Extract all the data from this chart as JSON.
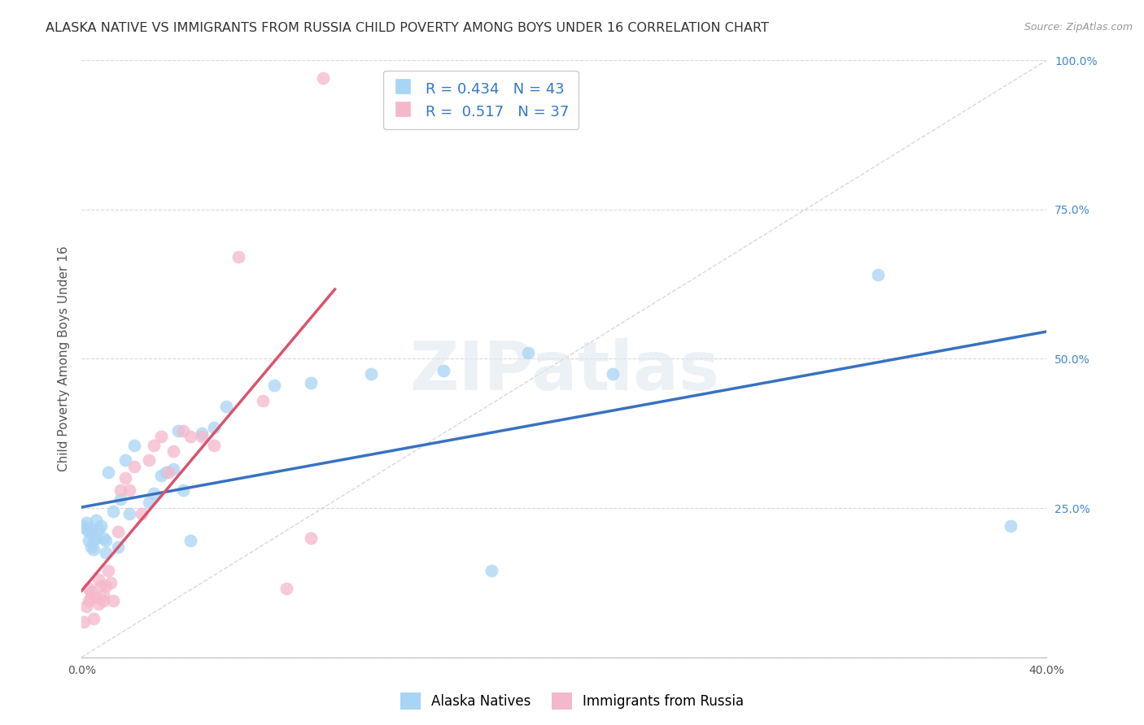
{
  "title": "ALASKA NATIVE VS IMMIGRANTS FROM RUSSIA CHILD POVERTY AMONG BOYS UNDER 16 CORRELATION CHART",
  "source": "Source: ZipAtlas.com",
  "ylabel": "Child Poverty Among Boys Under 16",
  "xlim": [
    0.0,
    0.4
  ],
  "ylim": [
    0.0,
    1.0
  ],
  "alaska_R": 0.434,
  "alaska_N": 43,
  "russia_R": 0.517,
  "russia_N": 37,
  "alaska_color": "#a8d4f5",
  "russia_color": "#f5b8cb",
  "alaska_line_color": "#3872c0",
  "russia_line_color": "#d9546e",
  "diag_line_color": "#c8c8c8",
  "grid_color": "#d8d8d8",
  "background_color": "#ffffff",
  "alaska_x": [
    0.001,
    0.002,
    0.002,
    0.003,
    0.003,
    0.004,
    0.004,
    0.005,
    0.005,
    0.006,
    0.006,
    0.007,
    0.008,
    0.009,
    0.01,
    0.01,
    0.011,
    0.013,
    0.015,
    0.016,
    0.018,
    0.02,
    0.022,
    0.028,
    0.03,
    0.033,
    0.035,
    0.038,
    0.04,
    0.042,
    0.045,
    0.05,
    0.055,
    0.06,
    0.08,
    0.095,
    0.12,
    0.15,
    0.17,
    0.185,
    0.22,
    0.33,
    0.385
  ],
  "alaska_y": [
    0.22,
    0.215,
    0.225,
    0.195,
    0.21,
    0.185,
    0.215,
    0.195,
    0.18,
    0.23,
    0.2,
    0.215,
    0.22,
    0.2,
    0.195,
    0.175,
    0.31,
    0.245,
    0.185,
    0.265,
    0.33,
    0.24,
    0.355,
    0.26,
    0.275,
    0.305,
    0.31,
    0.315,
    0.38,
    0.28,
    0.195,
    0.375,
    0.385,
    0.42,
    0.455,
    0.46,
    0.475,
    0.48,
    0.145,
    0.51,
    0.475,
    0.64,
    0.22
  ],
  "russia_x": [
    0.001,
    0.002,
    0.003,
    0.003,
    0.004,
    0.004,
    0.005,
    0.006,
    0.007,
    0.007,
    0.008,
    0.009,
    0.009,
    0.01,
    0.011,
    0.012,
    0.013,
    0.015,
    0.016,
    0.018,
    0.02,
    0.022,
    0.025,
    0.028,
    0.03,
    0.033,
    0.036,
    0.038,
    0.042,
    0.045,
    0.05,
    0.055,
    0.065,
    0.075,
    0.085,
    0.095,
    0.1
  ],
  "russia_y": [
    0.06,
    0.085,
    0.095,
    0.115,
    0.1,
    0.11,
    0.065,
    0.1,
    0.13,
    0.09,
    0.12,
    0.095,
    0.105,
    0.12,
    0.145,
    0.125,
    0.095,
    0.21,
    0.28,
    0.3,
    0.28,
    0.32,
    0.24,
    0.33,
    0.355,
    0.37,
    0.31,
    0.345,
    0.38,
    0.37,
    0.37,
    0.355,
    0.67,
    0.43,
    0.115,
    0.2,
    0.97
  ],
  "legend_label_alaska": "Alaska Natives",
  "legend_label_russia": "Immigrants from Russia",
  "title_fontsize": 11.5,
  "axis_label_fontsize": 11,
  "tick_fontsize": 10,
  "legend_fontsize": 13,
  "watermark_text": "ZIPatlas"
}
